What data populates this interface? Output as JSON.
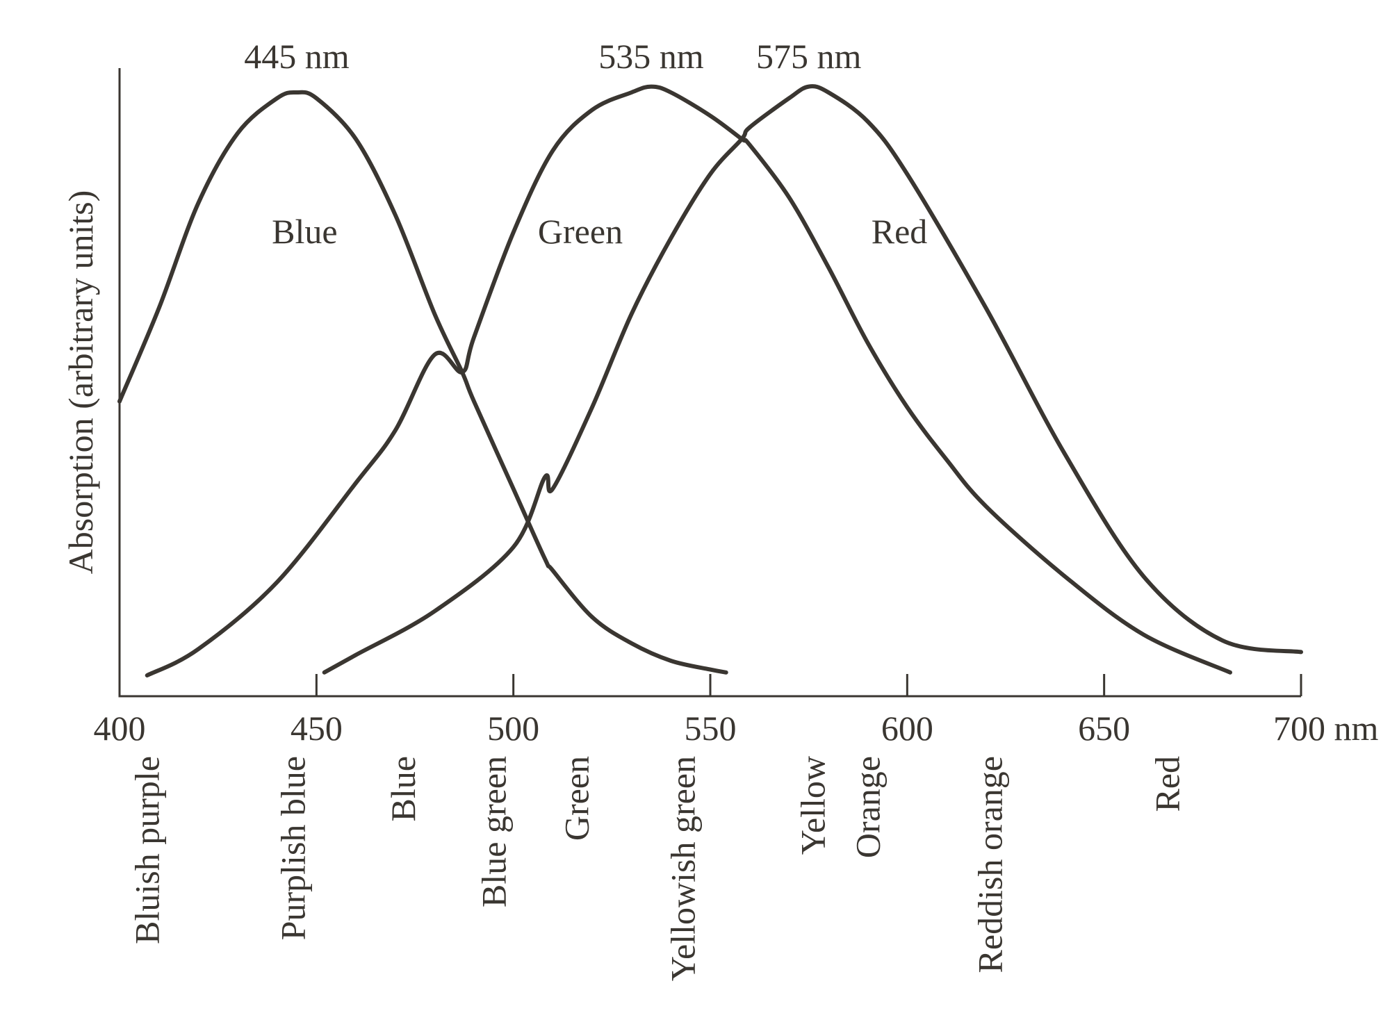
{
  "chart_data": {
    "type": "line",
    "title": "",
    "xlabel": "",
    "ylabel": "Absorption (arbitrary units)",
    "xlim": [
      400,
      700
    ],
    "ylim": [
      0,
      1
    ],
    "x_tick_labels": [
      "400",
      "450",
      "500",
      "550",
      "600",
      "650",
      "700 nm"
    ],
    "grid": false,
    "y_ticks_shown": false,
    "legend": "none",
    "line_color": "#3a3631",
    "series": [
      {
        "name": "Blue",
        "peak_label": "445 nm",
        "x": [
          400,
          410,
          420,
          430,
          440,
          445,
          450,
          460,
          470,
          480,
          487,
          490,
          500,
          508,
          510,
          520,
          530,
          540,
          550,
          554
        ],
        "y": [
          0.47,
          0.63,
          0.81,
          0.93,
          0.99,
          1.0,
          0.99,
          0.92,
          0.79,
          0.62,
          0.52,
          0.47,
          0.32,
          0.2,
          0.18,
          0.1,
          0.055,
          0.025,
          0.01,
          0.005
        ]
      },
      {
        "name": "Green",
        "peak_label": "535 nm",
        "x": [
          407,
          420,
          440,
          460,
          470,
          480,
          487,
          490,
          500,
          510,
          520,
          530,
          535,
          540,
          550,
          558,
          560,
          570,
          580,
          590,
          600,
          610,
          620,
          640,
          660,
          682
        ],
        "y": [
          0.0,
          0.045,
          0.16,
          0.33,
          0.42,
          0.55,
          0.52,
          0.58,
          0.76,
          0.9,
          0.97,
          1.0,
          1.01,
          1.0,
          0.96,
          0.92,
          0.91,
          0.82,
          0.7,
          0.57,
          0.46,
          0.37,
          0.29,
          0.17,
          0.07,
          0.005
        ]
      },
      {
        "name": "Red",
        "peak_label": "575 nm",
        "x": [
          452,
          460,
          480,
          500,
          508,
          510,
          520,
          530,
          540,
          550,
          558,
          560,
          570,
          575,
          580,
          590,
          600,
          620,
          640,
          660,
          680,
          700
        ],
        "y": [
          0.005,
          0.035,
          0.11,
          0.22,
          0.34,
          0.32,
          0.46,
          0.62,
          0.75,
          0.86,
          0.92,
          0.94,
          0.99,
          1.01,
          1.0,
          0.95,
          0.86,
          0.63,
          0.38,
          0.17,
          0.06,
          0.04
        ]
      }
    ],
    "color_regions": [
      {
        "label": "Bluish purple",
        "x": 407
      },
      {
        "label": "Purplish blue",
        "x": 444
      },
      {
        "label": "Blue",
        "x": 472
      },
      {
        "label": "Blue green",
        "x": 495
      },
      {
        "label": "Green",
        "x": 516
      },
      {
        "label": "Yellowish green",
        "x": 543
      },
      {
        "label": "Yellow",
        "x": 576
      },
      {
        "label": "Orange",
        "x": 590
      },
      {
        "label": "Reddish orange",
        "x": 621
      },
      {
        "label": "Red",
        "x": 666
      }
    ]
  }
}
